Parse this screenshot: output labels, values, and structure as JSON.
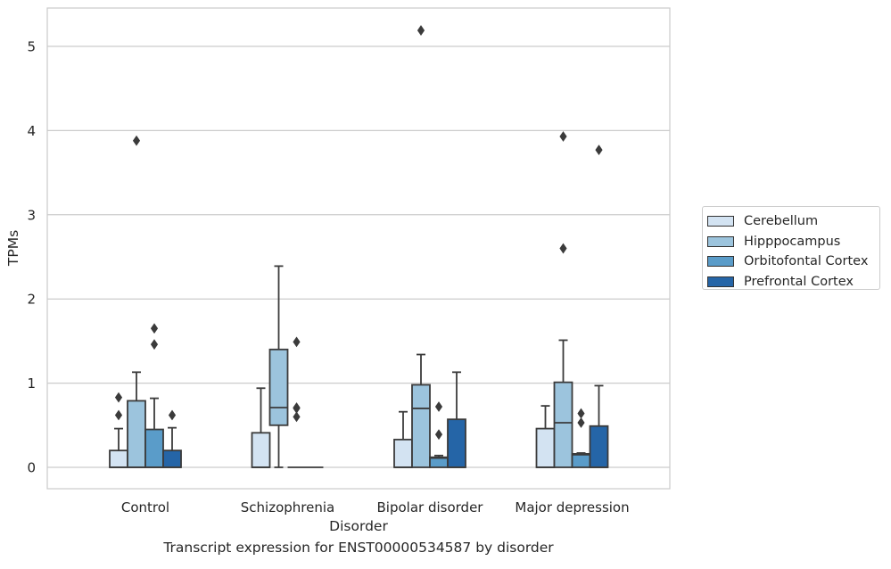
{
  "caption": "Transcript expression for ENST00000534587 by disorder",
  "chart_data": {
    "type": "boxplot",
    "xlabel": "Disorder",
    "ylabel": "TPMs",
    "ylim": [
      -0.25,
      5.45
    ],
    "yticks": [
      0,
      1,
      2,
      3,
      4,
      5
    ],
    "grid": true,
    "legend_placement": "center-right outside",
    "categories": [
      "Control",
      "Schizophrenia",
      "Bipolar disorder",
      "Major depression"
    ],
    "series": [
      {
        "name": "Cerebellum",
        "color": "#d3e3f2",
        "boxes": [
          {
            "whislo": 0,
            "q1": 0,
            "med": 0,
            "q3": 0.2,
            "whishi": 0.46,
            "fliers": [
              0.62,
              0.83
            ]
          },
          {
            "whislo": 0,
            "q1": 0,
            "med": 0,
            "q3": 0.41,
            "whishi": 0.94,
            "fliers": []
          },
          {
            "whislo": 0,
            "q1": 0,
            "med": 0,
            "q3": 0.33,
            "whishi": 0.66,
            "fliers": []
          },
          {
            "whislo": 0,
            "q1": 0,
            "med": 0,
            "q3": 0.46,
            "whishi": 0.73,
            "fliers": []
          }
        ]
      },
      {
        "name": "Hipppocampus",
        "color": "#9cc4dd",
        "boxes": [
          {
            "whislo": 0,
            "q1": 0,
            "med": 0,
            "q3": 0.79,
            "whishi": 1.13,
            "fliers": [
              3.88
            ]
          },
          {
            "whislo": 0,
            "q1": 0.5,
            "med": 0.71,
            "q3": 1.4,
            "whishi": 2.39,
            "fliers": []
          },
          {
            "whislo": 0,
            "q1": 0,
            "med": 0.7,
            "q3": 0.98,
            "whishi": 1.34,
            "fliers": [
              5.19
            ]
          },
          {
            "whislo": 0,
            "q1": 0,
            "med": 0.53,
            "q3": 1.01,
            "whishi": 1.51,
            "fliers": [
              2.6,
              3.93
            ]
          }
        ]
      },
      {
        "name": "Orbitofontal Cortex",
        "color": "#5a9cc9",
        "boxes": [
          {
            "whislo": 0,
            "q1": 0,
            "med": 0,
            "q3": 0.45,
            "whishi": 0.82,
            "fliers": [
              1.46,
              1.65
            ]
          },
          {
            "whislo": 0,
            "q1": 0,
            "med": 0,
            "q3": 0,
            "whishi": 0,
            "fliers": [
              0.6,
              0.7,
              0.71,
              1.49
            ]
          },
          {
            "whislo": 0,
            "q1": 0,
            "med": 0.11,
            "q3": 0.12,
            "whishi": 0.14,
            "fliers": [
              0.39,
              0.72
            ]
          },
          {
            "whislo": 0,
            "q1": 0,
            "med": 0.15,
            "q3": 0.16,
            "whishi": 0.17,
            "fliers": [
              0.53,
              0.64
            ]
          }
        ]
      },
      {
        "name": "Prefrontal Cortex",
        "color": "#2565a7",
        "boxes": [
          {
            "whislo": 0,
            "q1": 0,
            "med": 0,
            "q3": 0.2,
            "whishi": 0.47,
            "fliers": [
              0.62
            ]
          },
          {
            "whislo": 0,
            "q1": 0,
            "med": 0,
            "q3": 0,
            "whishi": 0,
            "fliers": []
          },
          {
            "whislo": 0,
            "q1": 0,
            "med": 0,
            "q3": 0.57,
            "whishi": 1.13,
            "fliers": []
          },
          {
            "whislo": 0,
            "q1": 0,
            "med": 0,
            "q3": 0.49,
            "whishi": 0.97,
            "fliers": [
              3.77
            ]
          }
        ]
      }
    ]
  }
}
